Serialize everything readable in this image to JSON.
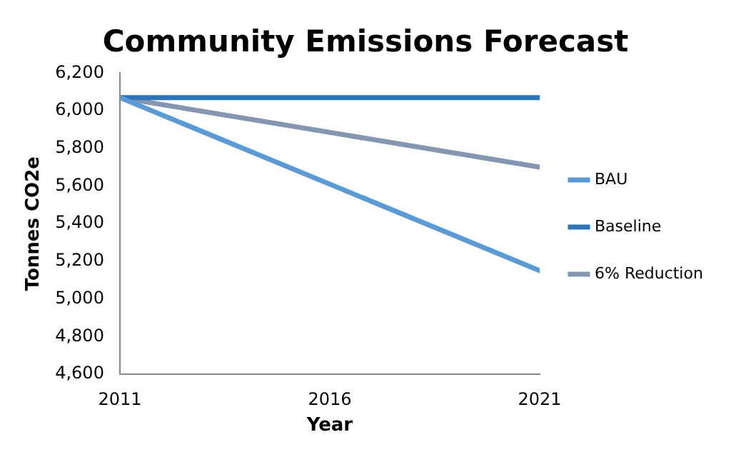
{
  "chart_data": {
    "type": "line",
    "title": "Community Emissions Forecast",
    "xlabel": "Year",
    "ylabel": "Tonnes CO2e",
    "x": [
      2011,
      2016,
      2021
    ],
    "series": [
      {
        "name": "BAU",
        "color": "#5b9bd5",
        "values": [
          6070,
          5610,
          5150
        ]
      },
      {
        "name": "Baseline",
        "color": "#2e75b6",
        "values": [
          6070,
          6070,
          6070
        ]
      },
      {
        "name": "6% Reduction",
        "color": "#8496b0",
        "values": [
          6070,
          5885,
          5700
        ]
      }
    ],
    "xlim": [
      2011,
      2021
    ],
    "xticks": [
      2011,
      2016,
      2021
    ],
    "ylim": [
      4600,
      6200
    ],
    "yticks": [
      {
        "value": 4600,
        "label": "4,600"
      },
      {
        "value": 4800,
        "label": "4,800"
      },
      {
        "value": 5000,
        "label": "5,000"
      },
      {
        "value": 5200,
        "label": "5,200"
      },
      {
        "value": 5400,
        "label": "5,400"
      },
      {
        "value": 5600,
        "label": "5,600"
      },
      {
        "value": 5800,
        "label": "5,800"
      },
      {
        "value": 6000,
        "label": "6,000"
      },
      {
        "value": 6200,
        "label": "6,200"
      }
    ],
    "grid": false,
    "legend": "right",
    "marker": "none",
    "line_style": "solid"
  }
}
